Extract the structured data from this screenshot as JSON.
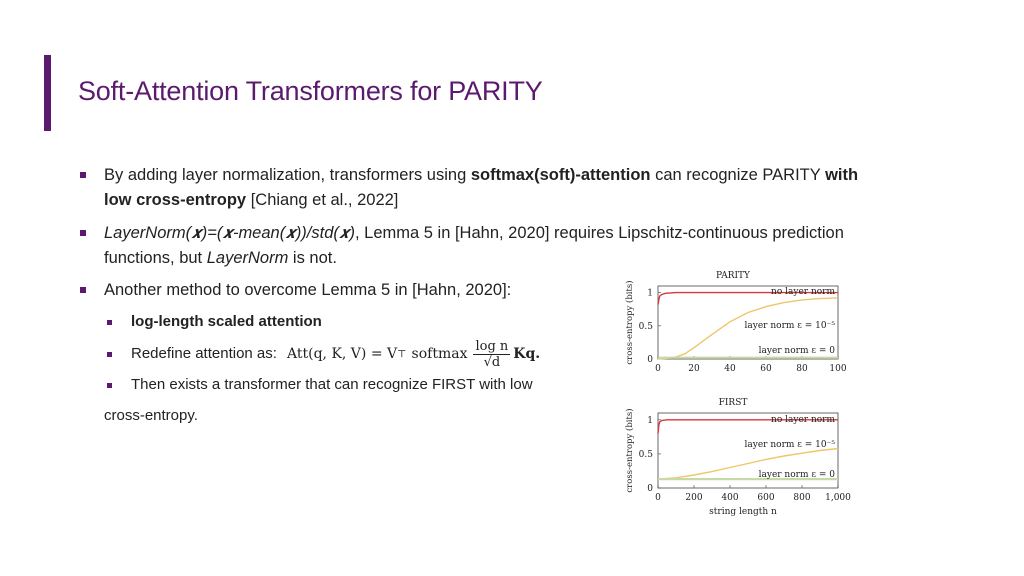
{
  "slide": {
    "title": "Soft-Attention Transformers for PARITY"
  },
  "bullets": {
    "b1_pre": "By adding layer normalization, transformers using ",
    "b1_bold1": "softmax(soft)-attention",
    "b1_mid": " can recognize PARITY ",
    "b1_bold2": "with",
    "b1_line2_bold": "low cross-entropy",
    "b1_line2_rest": " [Chiang et al., 2022]",
    "b2_italic": "LayerNorm(𝒙)=(𝒙-mean(𝒙))/std(𝒙)",
    "b2_rest": ", Lemma 5 in [Hahn, 2020] requires Lipschitz-continuous prediction",
    "b2_line2_pre": "functions, but ",
    "b2_line2_italic": "LayerNorm",
    "b2_line2_post": " is not.",
    "b3": "Another method to overcome Lemma 5 in [Hahn, 2020]:"
  },
  "subbullets": {
    "s1_bold": "log-length scaled attention",
    "s2_label": "Redefine attention as:",
    "s2_formula_lhs": "Att(q, K, V) = V",
    "s2_formula_sup": "⊤",
    "s2_formula_softmax": "softmax",
    "s2_formula_num": "log n",
    "s2_formula_den": "√d",
    "s2_formula_rhs": "Kq.",
    "s3": "Then exists a transformer that can recognize FIRST with low",
    "s3_cont": "cross-entropy."
  },
  "chart_data": [
    {
      "type": "line",
      "title": "PARITY",
      "ylabel": "cross-entropy (bits)",
      "xlabel": "",
      "xlim": [
        0,
        100
      ],
      "ylim": [
        0,
        1.1
      ],
      "xticks": [
        "0",
        "20",
        "40",
        "60",
        "80",
        "100"
      ],
      "yticks": [
        "0",
        "0.5",
        "1"
      ],
      "series": [
        {
          "name": "no layer norm",
          "color": "#d9363e",
          "x": [
            0,
            0.5,
            1,
            2,
            4,
            10,
            20,
            40,
            60,
            80,
            100
          ],
          "y": [
            0.82,
            0.9,
            0.95,
            0.97,
            0.99,
            1.0,
            1.0,
            1.0,
            1.0,
            1.0,
            1.0
          ]
        },
        {
          "name": "layer norm ε = 10⁻⁵",
          "color": "#f0c56a",
          "x": [
            0,
            5,
            10,
            15,
            20,
            30,
            40,
            50,
            60,
            70,
            80,
            90,
            100
          ],
          "y": [
            0.0,
            0.01,
            0.03,
            0.08,
            0.17,
            0.37,
            0.56,
            0.7,
            0.79,
            0.85,
            0.89,
            0.91,
            0.92
          ]
        },
        {
          "name": "layer norm ε = 0",
          "color": "#c8d9a8",
          "x": [
            0,
            100
          ],
          "y": [
            0.02,
            0.02
          ]
        }
      ]
    },
    {
      "type": "line",
      "title": "FIRST",
      "ylabel": "cross-entropy (bits)",
      "xlabel": "string length n",
      "xlim": [
        0,
        1000
      ],
      "ylim": [
        0,
        1.1
      ],
      "xticks": [
        "0",
        "200",
        "400",
        "600",
        "800",
        "1,000"
      ],
      "yticks": [
        "0",
        "0.5",
        "1"
      ],
      "series": [
        {
          "name": "no layer norm",
          "color": "#d9363e",
          "x": [
            0,
            5,
            10,
            20,
            50,
            100,
            300,
            600,
            1000
          ],
          "y": [
            0.8,
            0.93,
            0.97,
            0.99,
            1.0,
            1.0,
            1.0,
            1.0,
            1.0
          ]
        },
        {
          "name": "layer norm ε = 10⁻⁵",
          "color": "#f0c56a",
          "x": [
            0,
            100,
            200,
            300,
            400,
            500,
            600,
            700,
            800,
            900,
            1000
          ],
          "y": [
            0.13,
            0.15,
            0.19,
            0.24,
            0.3,
            0.36,
            0.42,
            0.47,
            0.51,
            0.55,
            0.58
          ]
        },
        {
          "name": "layer norm ε = 0",
          "color": "#c8d9a8",
          "x": [
            0,
            1000
          ],
          "y": [
            0.13,
            0.13
          ]
        }
      ]
    }
  ]
}
